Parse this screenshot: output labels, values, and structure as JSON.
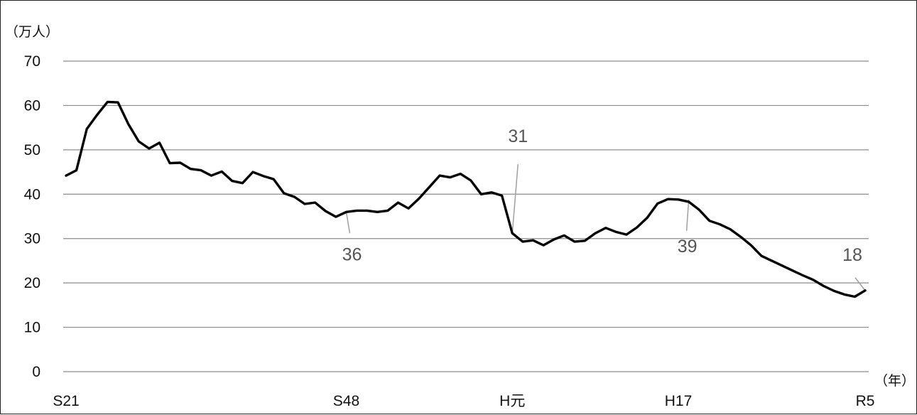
{
  "chart_data": {
    "type": "line",
    "title": "",
    "ylabel": "（万人）",
    "xlabel": "（年）",
    "ylim": [
      0,
      70
    ],
    "grid": true,
    "yticks": [
      0,
      10,
      20,
      30,
      40,
      50,
      60,
      70
    ],
    "x_tick_labels": [
      {
        "x": 1946,
        "label": "S21"
      },
      {
        "x": 1973,
        "label": "S48"
      },
      {
        "x": 1989,
        "label": "H元"
      },
      {
        "x": 2005,
        "label": "H17"
      },
      {
        "x": 2023,
        "label": "R5"
      }
    ],
    "series": [
      {
        "x": [
          1946,
          1947,
          1948,
          1949,
          1950,
          1951,
          1952,
          1953,
          1954,
          1955,
          1956,
          1957,
          1958,
          1959,
          1960,
          1961,
          1962,
          1963,
          1964,
          1965,
          1966,
          1967,
          1968,
          1969,
          1970,
          1971,
          1972,
          1973,
          1974,
          1975,
          1976,
          1977,
          1978,
          1979,
          1980,
          1981,
          1982,
          1983,
          1984,
          1985,
          1986,
          1987,
          1988,
          1989,
          1990,
          1991,
          1992,
          1993,
          1994,
          1995,
          1996,
          1997,
          1998,
          1999,
          2000,
          2001,
          2002,
          2003,
          2004,
          2005,
          2006,
          2007,
          2008,
          2009,
          2010,
          2011,
          2012,
          2013,
          2014,
          2015,
          2016,
          2017,
          2018,
          2019,
          2020,
          2021,
          2022,
          2023
        ],
        "values": [
          44.2,
          45.4,
          54.7,
          57.9,
          60.8,
          60.7,
          55.8,
          51.9,
          50.3,
          51.6,
          47.0,
          47.1,
          45.7,
          45.4,
          44.2,
          45.1,
          43.0,
          42.5,
          45.0,
          44.1,
          43.4,
          40.2,
          39.4,
          37.8,
          38.1,
          36.2,
          34.9,
          36.0,
          36.3,
          36.3,
          36.0,
          36.3,
          38.1,
          36.8,
          39.0,
          41.6,
          44.2,
          43.8,
          44.6,
          43.1,
          40.0,
          40.4,
          39.7,
          31.2,
          29.3,
          29.6,
          28.5,
          29.8,
          30.7,
          29.3,
          29.5,
          31.2,
          32.4,
          31.5,
          30.9,
          32.5,
          34.7,
          37.9,
          38.9,
          38.8,
          38.3,
          36.5,
          34.0,
          33.2,
          32.1,
          30.4,
          28.5,
          26.1,
          25.0,
          23.9,
          22.8,
          21.7,
          20.7,
          19.3,
          18.2,
          17.4,
          16.9,
          18.3
        ]
      }
    ],
    "annotations": [
      {
        "x": 1973,
        "y": 36.0,
        "text": "36"
      },
      {
        "x": 1989,
        "y": 31.2,
        "text": "31"
      },
      {
        "x": 2006,
        "y": 38.8,
        "text": "39"
      },
      {
        "x": 2023,
        "y": 18.3,
        "text": "18"
      }
    ]
  }
}
